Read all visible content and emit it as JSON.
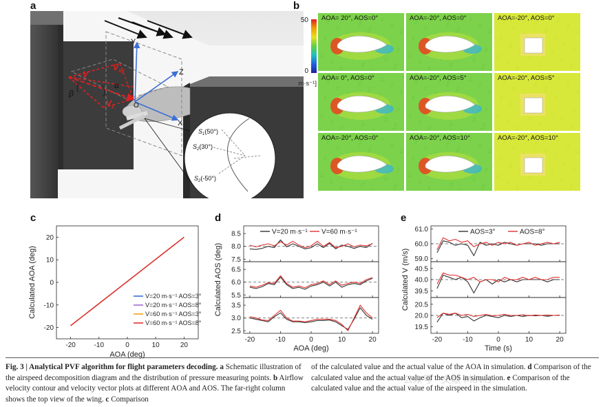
{
  "panel_labels": {
    "a": "a",
    "b": "b",
    "c": "c",
    "d": "d",
    "e": "e"
  },
  "panel_a": {
    "axis_y": "Y",
    "axis_z": "Z",
    "axis_x": "X",
    "origin": "O",
    "v": "V",
    "vxy": "V",
    "vxy_sub": "xy",
    "vz": "V",
    "vz_sub": "z",
    "alpha": "α",
    "beta": "β",
    "s1": "S",
    "s1_sub": "1",
    "s1_val": "(50°)",
    "s2": "S",
    "s2_sub": "2",
    "s2_val": "(30°)",
    "s3": "S",
    "s3_sub": "2",
    "s3_val": "(-50°)"
  },
  "panel_b": {
    "colorbar_max": "50",
    "colorbar_min": "0",
    "colorbar_unit": "m·s⁻¹]",
    "cells": [
      {
        "title": "AOA= 20°,  AOS=0°",
        "shape": "wing",
        "flow": "green"
      },
      {
        "title": "AOA=-20°,  AOS=0°",
        "shape": "wing",
        "flow": "green"
      },
      {
        "title": "AOA=-20°,  AOS=0°",
        "shape": "box",
        "flow": "yellow"
      },
      {
        "title": "AOA=  0°,  AOS=0°",
        "shape": "wing",
        "flow": "green"
      },
      {
        "title": "AOA=-20°,  AOS=5°",
        "shape": "wing",
        "flow": "green"
      },
      {
        "title": "AOA=-20°,  AOS=5°",
        "shape": "box",
        "flow": "yellow"
      },
      {
        "title": "AOA=-20°,  AOS=0°",
        "shape": "wing",
        "flow": "green"
      },
      {
        "title": "AOA=-20°,  AOS=10°",
        "shape": "wing",
        "flow": "green"
      },
      {
        "title": "AOA=-20°,  AOS=10°",
        "shape": "box",
        "flow": "yellow"
      }
    ]
  },
  "colors": {
    "blue": "#3b6fd8",
    "purple": "#a06ad0",
    "orange": "#f0a020",
    "red": "#e03030",
    "black": "#333333"
  },
  "chart_data": [
    {
      "id": "c",
      "type": "line",
      "xlabel": "AOA (deg)",
      "ylabel": "Calculated AOA (deg)",
      "xlim": [
        -25,
        25
      ],
      "ylim": [
        -25,
        25
      ],
      "xticks": [
        -20,
        -10,
        0,
        10,
        20
      ],
      "yticks": [
        -20,
        -10,
        0,
        10,
        20
      ],
      "series": [
        {
          "name": "V=20 m·s⁻¹ AOS=3°",
          "color": "#3b6fd8",
          "x": [
            -20,
            20
          ],
          "y": [
            -19.2,
            20
          ]
        },
        {
          "name": "V=20 m·s⁻¹ AOS=8°",
          "color": "#a06ad0",
          "x": [
            -20,
            20
          ],
          "y": [
            -19.2,
            20
          ]
        },
        {
          "name": "V=60 m·s⁻¹ AOS=3°",
          "color": "#f0a020",
          "x": [
            -20,
            20
          ],
          "y": [
            -19.2,
            20
          ]
        },
        {
          "name": "V=60 m·s⁻¹ AOS=8°",
          "color": "#e03030",
          "x": [
            -20,
            20
          ],
          "y": [
            -19.2,
            20
          ]
        }
      ],
      "legend": "bottom-right"
    },
    {
      "id": "d",
      "type": "line",
      "xlabel": "AOA (deg)",
      "ylabel": "Calculated AOS (deg)",
      "xticks": [
        -20,
        -10,
        0,
        10,
        20
      ],
      "xlim": [
        -22,
        22
      ],
      "legend_entries": [
        {
          "name": "V=20 m·s⁻¹",
          "color": "#333333"
        },
        {
          "name": "V=60 m·s⁻¹",
          "color": "#e03030"
        }
      ],
      "subplots": [
        {
          "ylim": [
            7.4,
            8.8
          ],
          "yticks": [
            7.5,
            8.0,
            8.5
          ],
          "ref": 8.0,
          "series": [
            {
              "name": "V=20 m·s⁻¹",
              "color": "#333333",
              "x": [
                -20,
                -18,
                -16,
                -14,
                -12,
                -10,
                -8,
                -6,
                -4,
                -2,
                0,
                2,
                4,
                6,
                8,
                10,
                12,
                14,
                16,
                18,
                20
              ],
              "y": [
                7.9,
                7.88,
                7.92,
                8.0,
                7.95,
                8.25,
                7.98,
                8.1,
                8.0,
                7.9,
                7.95,
                8.1,
                7.95,
                8.12,
                7.9,
                8.05,
                8.0,
                7.92,
                8.0,
                7.95,
                8.12
              ]
            },
            {
              "name": "V=60 m·s⁻¹",
              "color": "#e03030",
              "x": [
                -20,
                -18,
                -16,
                -14,
                -12,
                -10,
                -8,
                -6,
                -4,
                -2,
                0,
                2,
                4,
                6,
                8,
                10,
                12,
                14,
                16,
                18,
                20
              ],
              "y": [
                8.05,
                7.98,
                8.05,
                8.1,
                8.02,
                8.18,
                8.05,
                8.2,
                8.05,
                7.95,
                8.02,
                8.2,
                8.0,
                8.15,
                7.95,
                8.0,
                8.1,
                7.98,
                8.05,
                8.02,
                8.1
              ]
            }
          ]
        },
        {
          "ylim": [
            5.4,
            6.8
          ],
          "yticks": [
            5.5,
            6.0,
            6.5
          ],
          "ref": 6.0,
          "series": [
            {
              "name": "V=20 m·s⁻¹",
              "color": "#333333",
              "x": [
                -20,
                -18,
                -16,
                -14,
                -12,
                -10,
                -8,
                -6,
                -4,
                -2,
                0,
                2,
                4,
                6,
                8,
                10,
                12,
                14,
                16,
                18,
                20
              ],
              "y": [
                5.8,
                5.75,
                5.82,
                5.95,
                5.9,
                6.2,
                5.9,
                5.75,
                5.8,
                5.72,
                5.85,
                5.9,
                6.0,
                5.85,
                6.0,
                5.8,
                5.9,
                5.95,
                5.9,
                6.05,
                6.15
              ]
            },
            {
              "name": "V=60 m·s⁻¹",
              "color": "#e03030",
              "x": [
                -20,
                -18,
                -16,
                -14,
                -12,
                -10,
                -8,
                -6,
                -4,
                -2,
                0,
                2,
                4,
                6,
                8,
                10,
                12,
                14,
                16,
                18,
                20
              ],
              "y": [
                5.85,
                5.8,
                5.88,
                5.98,
                5.95,
                6.25,
                5.95,
                5.8,
                5.85,
                5.78,
                5.9,
                5.95,
                6.05,
                5.9,
                6.05,
                5.88,
                5.95,
                6.0,
                5.95,
                6.1,
                6.18
              ]
            }
          ]
        },
        {
          "ylim": [
            2.4,
            3.8
          ],
          "yticks": [
            2.5,
            3.0,
            3.5
          ],
          "ref": 3.0,
          "series": [
            {
              "name": "V=20 m·s⁻¹",
              "color": "#333333",
              "x": [
                -20,
                -18,
                -16,
                -14,
                -12,
                -10,
                -8,
                -6,
                -4,
                -2,
                0,
                2,
                4,
                6,
                8,
                10,
                12,
                14,
                16,
                18,
                20
              ],
              "y": [
                3.0,
                2.95,
                2.9,
                2.85,
                3.05,
                3.2,
                2.95,
                2.85,
                2.85,
                2.82,
                2.85,
                2.9,
                2.9,
                2.92,
                2.85,
                2.7,
                2.55,
                2.95,
                3.4,
                3.1,
                2.95
              ]
            },
            {
              "name": "V=60 m·s⁻¹",
              "color": "#e03030",
              "x": [
                -20,
                -18,
                -16,
                -14,
                -12,
                -10,
                -8,
                -6,
                -4,
                -2,
                0,
                2,
                4,
                6,
                8,
                10,
                12,
                14,
                16,
                18,
                20
              ],
              "y": [
                3.05,
                3.0,
                2.92,
                2.9,
                3.1,
                3.3,
                3.0,
                2.88,
                2.88,
                2.85,
                2.9,
                2.95,
                2.95,
                2.95,
                2.9,
                2.75,
                2.5,
                3.0,
                3.5,
                3.2,
                3.0
              ]
            }
          ]
        }
      ]
    },
    {
      "id": "e",
      "type": "line",
      "xlabel": "Time (s)",
      "ylabel": "Calculated V (m/s)",
      "xticks": [
        -20,
        -10,
        0,
        10,
        20
      ],
      "xlim": [
        -22,
        22
      ],
      "legend_entries": [
        {
          "name": "AOS=3°",
          "color": "#333333"
        },
        {
          "name": "AOS=8°",
          "color": "#e03030"
        }
      ],
      "subplots": [
        {
          "ylim": [
            58.8,
            61.2
          ],
          "yticks": [
            59.0,
            60.0,
            61.0
          ],
          "ref": 60.0,
          "series": [
            {
              "name": "AOS=3°",
              "color": "#333333",
              "x": [
                -20,
                -18,
                -16,
                -14,
                -12,
                -10,
                -8,
                -6,
                -4,
                -2,
                0,
                2,
                4,
                6,
                8,
                10,
                12,
                14,
                16,
                18,
                20
              ],
              "y": [
                59.4,
                60.2,
                60.1,
                59.9,
                60.0,
                59.9,
                59.2,
                60.1,
                59.9,
                60.0,
                59.9,
                60.1,
                60.0,
                59.9,
                60.0,
                60.0,
                60.0,
                59.9,
                60.0,
                60.0,
                60.0
              ]
            },
            {
              "name": "AOS=8°",
              "color": "#e03030",
              "x": [
                -20,
                -18,
                -16,
                -14,
                -12,
                -10,
                -8,
                -6,
                -4,
                -2,
                0,
                2,
                4,
                6,
                8,
                10,
                12,
                14,
                16,
                18,
                20
              ],
              "y": [
                59.6,
                60.4,
                60.2,
                60.3,
                60.1,
                60.2,
                59.8,
                60.0,
                60.1,
                59.9,
                60.1,
                60.0,
                60.1,
                59.9,
                60.0,
                60.1,
                59.9,
                60.0,
                60.1,
                60.0,
                60.1
              ]
            }
          ]
        },
        {
          "ylim": [
            39.2,
            40.8
          ],
          "yticks": [
            39.5,
            40.0,
            40.5
          ],
          "ref": 40.0,
          "series": [
            {
              "name": "AOS=3°",
              "color": "#333333",
              "x": [
                -20,
                -18,
                -16,
                -14,
                -12,
                -10,
                -8,
                -6,
                -4,
                -2,
                0,
                2,
                4,
                6,
                8,
                10,
                12,
                14,
                16,
                18,
                20
              ],
              "y": [
                39.6,
                40.2,
                40.1,
                40.0,
                40.1,
                39.9,
                39.4,
                39.9,
                40.0,
                39.8,
                40.0,
                39.9,
                40.0,
                39.9,
                40.0,
                40.0,
                40.0,
                40.0,
                39.9,
                40.0,
                40.0
              ]
            },
            {
              "name": "AOS=8°",
              "color": "#e03030",
              "x": [
                -20,
                -18,
                -16,
                -14,
                -12,
                -10,
                -8,
                -6,
                -4,
                -2,
                0,
                2,
                4,
                6,
                8,
                10,
                12,
                14,
                16,
                18,
                20
              ],
              "y": [
                39.8,
                40.3,
                40.2,
                40.2,
                40.1,
                40.0,
                40.1,
                39.9,
                40.0,
                40.0,
                39.9,
                40.1,
                40.0,
                40.0,
                40.1,
                40.0,
                40.1,
                40.0,
                40.0,
                40.1,
                40.1
              ]
            }
          ]
        },
        {
          "ylim": [
            19.2,
            20.8
          ],
          "yticks": [
            19.5,
            20.0,
            20.5
          ],
          "ref": 20.0,
          "series": [
            {
              "name": "AOS=3°",
              "color": "#333333",
              "x": [
                -20,
                -18,
                -16,
                -14,
                -12,
                -10,
                -8,
                -6,
                -4,
                -2,
                0,
                2,
                4,
                6,
                8,
                10,
                12,
                14,
                16,
                18,
                20
              ],
              "y": [
                19.7,
                20.1,
                20.0,
                20.1,
                19.9,
                19.95,
                19.75,
                19.9,
                20.0,
                19.95,
                19.9,
                20.0,
                19.95,
                20.0,
                19.95,
                20.0,
                19.98,
                20.0,
                19.96,
                20.0,
                20.0
              ]
            },
            {
              "name": "AOS=8°",
              "color": "#e03030",
              "x": [
                -20,
                -18,
                -16,
                -14,
                -12,
                -10,
                -8,
                -6,
                -4,
                -2,
                0,
                2,
                4,
                6,
                8,
                10,
                12,
                14,
                16,
                18,
                20
              ],
              "y": [
                19.9,
                20.1,
                20.05,
                20.1,
                20.0,
                20.05,
                19.95,
                20.0,
                20.05,
                19.98,
                20.0,
                20.05,
                20.0,
                20.0,
                20.03,
                19.98,
                20.02,
                20.0,
                20.02,
                20.0,
                20.02
              ]
            }
          ]
        }
      ]
    }
  ],
  "caption": {
    "fig": "Fig. 3 | Analytical PVF algorithm for flight parameters decoding.",
    "a_label": "a",
    "a_text": " Schematic illustration of the airspeed decomposition diagram and the distribution of pressure measuring points. ",
    "b_label": "b",
    "b_text": " Airflow velocity contour and velocity vector plots at different AOA and AOS. The far-right column shows the top view of the wing. ",
    "c_label": "c",
    "c_text": " Comparison",
    "right_text_1": "of the calculated value and the actual value of the AOA in simulation. ",
    "d_label": "d",
    "right_text_2": " Comparison of the calculated value and the actual value of the AOS in simulation. ",
    "e_label": "e",
    "right_text_3": " Comparison of the calculated value and the actual value of the airspeed in the simulation."
  },
  "watermark": "公众号 · 文献 Mavis"
}
